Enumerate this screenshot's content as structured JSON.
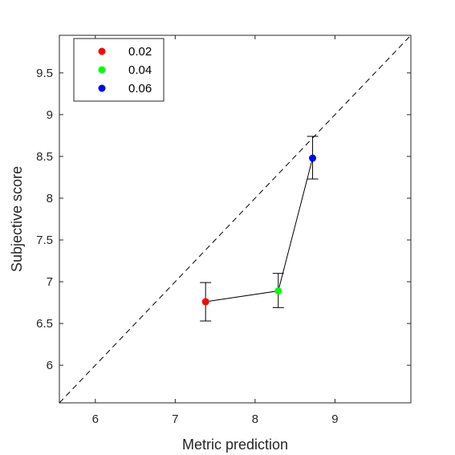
{
  "chart_data": {
    "type": "scatter",
    "xlabel": "Metric prediction",
    "ylabel": "Subjective score",
    "xlim": [
      5.55,
      9.95
    ],
    "ylim": [
      5.55,
      9.95
    ],
    "xticks": [
      "6",
      "7",
      "8",
      "9"
    ],
    "yticks": [
      "6",
      "6.5",
      "7",
      "7.5",
      "8",
      "8.5",
      "9",
      "9.5"
    ],
    "grid": false,
    "legend_position": "top-left",
    "reference_line": "identity (dashed)",
    "connecting_line": true,
    "series": [
      {
        "name": "0.02",
        "color": "#ff0000",
        "x": 7.38,
        "y": 6.76,
        "err_low": 6.53,
        "err_high": 6.99
      },
      {
        "name": "0.04",
        "color": "#00ff00",
        "x": 8.29,
        "y": 6.89,
        "err_low": 6.69,
        "err_high": 7.1
      },
      {
        "name": "0.06",
        "color": "#0000ff",
        "x": 8.72,
        "y": 8.48,
        "err_low": 8.23,
        "err_high": 8.74
      }
    ]
  }
}
